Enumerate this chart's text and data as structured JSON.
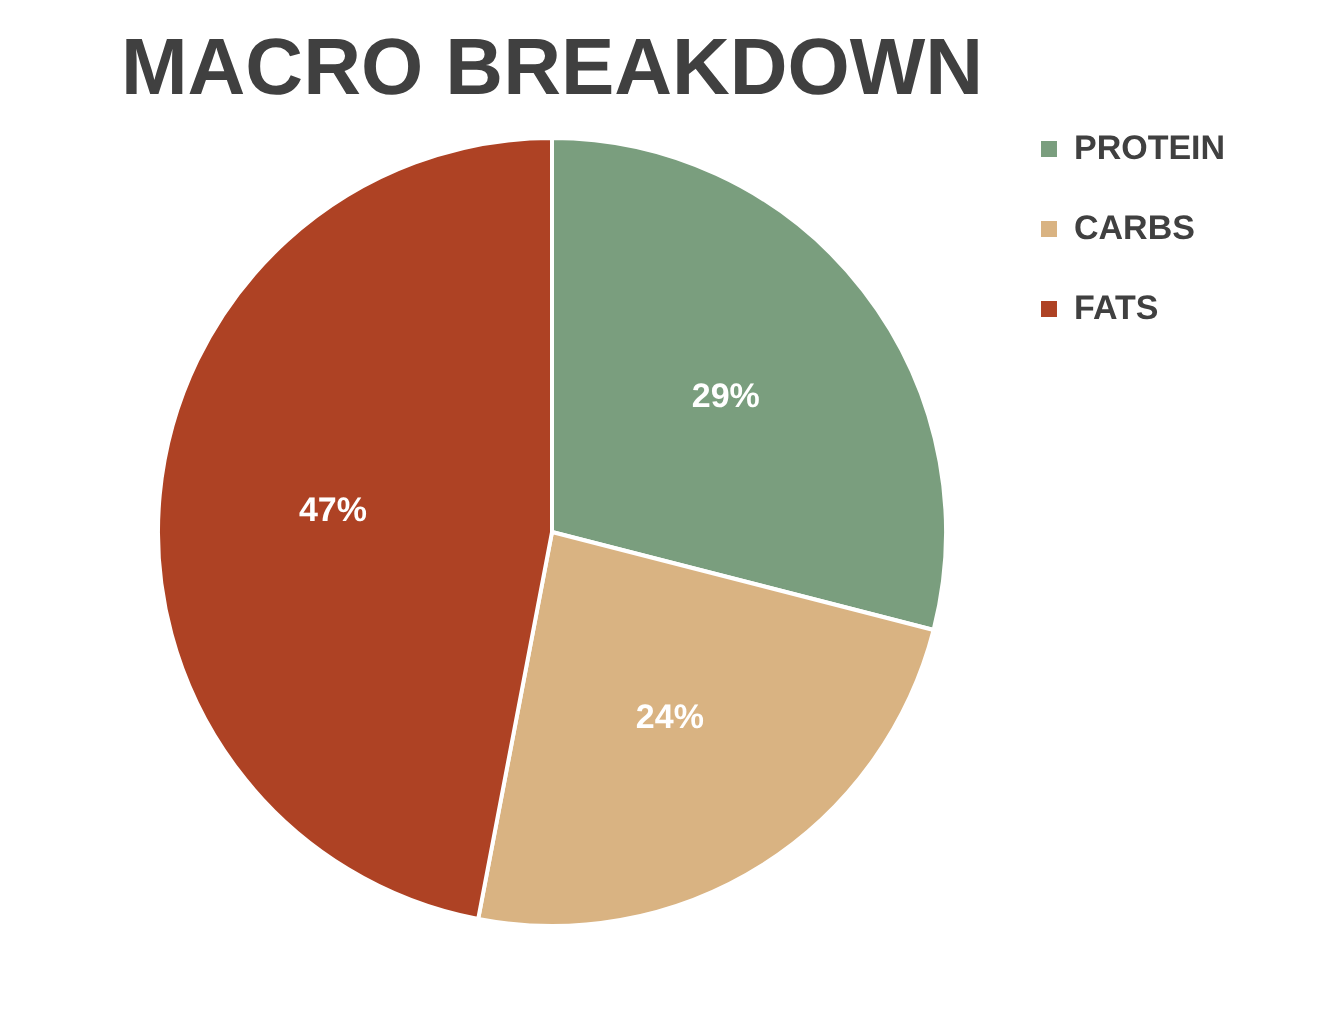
{
  "chart_data": {
    "type": "pie",
    "title": "MACRO BREAKDOWN",
    "categories": [
      "PROTEIN",
      "CARBS",
      "FATS"
    ],
    "values": [
      29,
      24,
      47
    ],
    "value_labels": [
      "29%",
      "24%",
      "47%"
    ],
    "colors": [
      "#7a9e7e",
      "#d9b382",
      "#ae4224"
    ],
    "legend": "right"
  }
}
